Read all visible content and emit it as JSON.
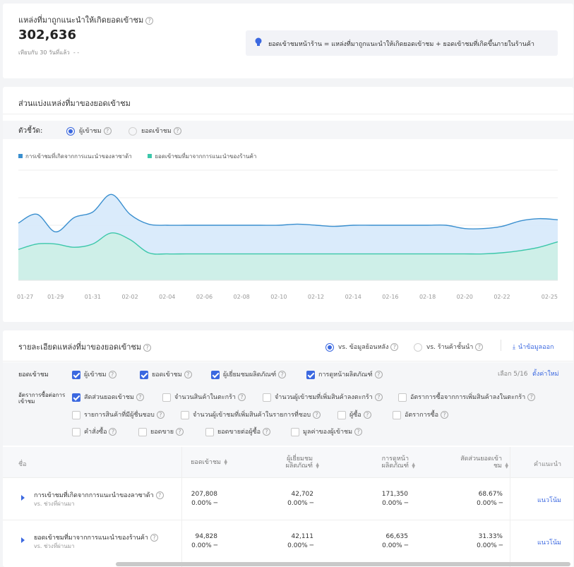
{
  "summary": {
    "title": "แหล่งที่มาถูกแนะนำให้เกิดยอดเข้าชม",
    "value": "302,636",
    "compare": "เทียบกับ 30 วันที่แล้ว",
    "compare_value": "- -",
    "info_text": "ยอดเข้าชมหน้าร้าน = แหล่งที่มาถูกแนะนำให้เกิดยอดเข้าชม + ยอดเข้าชมที่เกิดขึ้นภายในร้านค้า"
  },
  "share": {
    "title": "ส่วนแบ่งแหล่งที่มาของยอดเข้าชม",
    "metric_label": "ตัวชี้วัด:",
    "metric_options": [
      "ผู้เข้าชม",
      "ยอดเข้าชม"
    ],
    "legend": [
      "การเข้าชมที่เกิดจากการแนะนำของลาซาด้า",
      "ยอดเข้าชมที่มาจากการแนะนำของร้านค้า"
    ]
  },
  "chart_data": {
    "type": "area",
    "x": [
      "01-27",
      "01-28",
      "01-29",
      "01-30",
      "01-31",
      "02-01",
      "02-02",
      "02-03",
      "02-04",
      "02-05",
      "02-06",
      "02-07",
      "02-08",
      "02-09",
      "02-10",
      "02-11",
      "02-12",
      "02-13",
      "02-14",
      "02-15",
      "02-16",
      "02-17",
      "02-18",
      "02-19",
      "02-20",
      "02-21",
      "02-22",
      "02-23",
      "02-24",
      "02-25"
    ],
    "x_ticks": [
      "01-27",
      "01-29",
      "01-31",
      "02-02",
      "02-04",
      "02-06",
      "02-08",
      "02-10",
      "02-12",
      "02-14",
      "02-16",
      "02-18",
      "02-20",
      "02-22",
      "02-25"
    ],
    "series": [
      {
        "name": "การเข้าชมที่เกิดจากการแนะนำของลาซาด้า",
        "color": "#3a8fcf",
        "fill": "#d6e9fb",
        "values": [
          52,
          60,
          44,
          57,
          62,
          78,
          60,
          51,
          50,
          50,
          50,
          50,
          50,
          50,
          50,
          51,
          50,
          49,
          50,
          50,
          50,
          50,
          50,
          50,
          47,
          47,
          49,
          54,
          56,
          55
        ]
      },
      {
        "name": "ยอดเข้าชมที่มาจากการแนะนำของร้านค้า",
        "color": "#3cc7aa",
        "fill": "#ccefe6",
        "values": [
          28,
          33,
          33,
          30,
          33,
          43,
          37,
          25,
          24,
          24,
          24,
          24,
          24,
          24,
          24,
          24,
          24,
          24,
          24,
          24,
          24,
          24,
          24,
          24,
          24,
          24,
          25,
          27,
          30,
          35
        ]
      }
    ],
    "grid": true
  },
  "detail": {
    "title": "รายละเอียดแหล่งที่มาของยอดเข้าชม",
    "compare_options": [
      "vs. ข้อมูลย้อนหลัง",
      "vs. ร้านค้าชั้นนำ"
    ],
    "export_label": "นำข้อมูลออก",
    "group1_label": "ยอดเข้าชม",
    "group1_items": [
      "ผู้เข้าชม",
      "ยอดเข้าชม",
      "ผู้เยี่ยมชมผลิตภัณฑ์",
      "การดูหน้าผลิตภัณฑ์"
    ],
    "select_count": "เลือก 5/16",
    "reset_label": "ตั้งค่าใหม่",
    "group2_label": "อัตราการซื้อต่อการเข้าชม",
    "group2_row1": [
      "สัดส่วนยอดเข้าชม",
      "จำนวนสินค้าในตะกร้า",
      "จำนวนผู้เข้าชมที่เพิ่มสินค้าลงตะกร้า",
      "อัตราการซื้อจากการเพิ่มสินค้าลงในตะกร้า"
    ],
    "group2_row2": [
      "รายการสินค้าที่มีผู้ชื่นชอบ",
      "จำนวนผู้เข้าชมที่เพิ่มสินค้าในรายการที่ชอบ",
      "ผู้ซื้อ",
      "อัตราการซื้อ"
    ],
    "group2_row3": [
      "คำสั่งซื้อ",
      "ยอดขาย",
      "ยอดขายต่อผู้ซื้อ",
      "มูลค่าของผู้เข้าชม"
    ]
  },
  "table": {
    "headers": [
      "ชื่อ",
      "ยอดเข้าชม",
      "ผู้เยี่ยมชมผลิตภัณฑ์",
      "การดูหน้าผลิตภัณฑ์",
      "สัดส่วนยอดเข้าชม",
      "คำแนะนำ"
    ],
    "rows": [
      {
        "name": "การเข้าชมที่เกิดจากการแนะนำของลาซาด้า",
        "sub": "vs. ช่วงที่ผ่านมา",
        "values": [
          "207,808",
          "42,702",
          "171,350",
          "68.67%"
        ],
        "changes": [
          "0.00% ─",
          "0.00% ─",
          "0.00% ─",
          "0.00% ─"
        ],
        "action": "แนวโน้ม"
      },
      {
        "name": "ยอดเข้าชมที่มาจากการแนะนำของร้านค้า",
        "sub": "vs. ช่วงที่ผ่านมา",
        "values": [
          "94,828",
          "42,111",
          "66,635",
          "31.33%"
        ],
        "changes": [
          "0.00% ─",
          "0.00% ─",
          "0.00% ─",
          "0.00% ─"
        ],
        "action": "แนวโน้ม"
      }
    ]
  }
}
